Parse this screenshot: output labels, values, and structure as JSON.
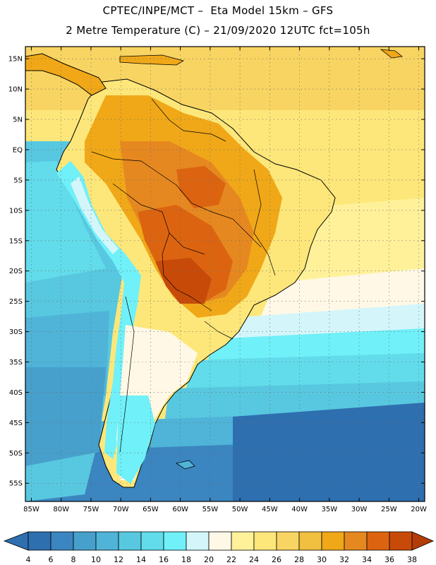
{
  "title": {
    "line1": "CPTEC/INPE/MCT –  Eta Model 15km – GFS",
    "line2": "2 Metre Temperature (C) – 21/09/2020 12UTC fct=105h"
  },
  "map": {
    "lon_range": [
      -86,
      -19
    ],
    "lat_range": [
      -58,
      17
    ],
    "lat_ticks": [
      {
        "value": 15,
        "label": "15N"
      },
      {
        "value": 10,
        "label": "10N"
      },
      {
        "value": 5,
        "label": "5N"
      },
      {
        "value": 0,
        "label": "EQ"
      },
      {
        "value": -5,
        "label": "5S"
      },
      {
        "value": -10,
        "label": "10S"
      },
      {
        "value": -15,
        "label": "15S"
      },
      {
        "value": -20,
        "label": "20S"
      },
      {
        "value": -25,
        "label": "25S"
      },
      {
        "value": -30,
        "label": "30S"
      },
      {
        "value": -35,
        "label": "35S"
      },
      {
        "value": -40,
        "label": "40S"
      },
      {
        "value": -45,
        "label": "45S"
      },
      {
        "value": -50,
        "label": "50S"
      },
      {
        "value": -55,
        "label": "55S"
      }
    ],
    "lon_ticks": [
      {
        "value": -85,
        "label": "85W"
      },
      {
        "value": -80,
        "label": "80W"
      },
      {
        "value": -75,
        "label": "75W"
      },
      {
        "value": -70,
        "label": "70W"
      },
      {
        "value": -65,
        "label": "65W"
      },
      {
        "value": -60,
        "label": "60W"
      },
      {
        "value": -55,
        "label": "55W"
      },
      {
        "value": -50,
        "label": "50W"
      },
      {
        "value": -45,
        "label": "45W"
      },
      {
        "value": -40,
        "label": "40W"
      },
      {
        "value": -35,
        "label": "35W"
      },
      {
        "value": -30,
        "label": "30W"
      },
      {
        "value": -25,
        "label": "25W"
      },
      {
        "value": -20,
        "label": "20W"
      }
    ]
  },
  "colorbar": {
    "labels": [
      "4",
      "6",
      "8",
      "10",
      "12",
      "14",
      "16",
      "18",
      "20",
      "22",
      "24",
      "26",
      "28",
      "30",
      "32",
      "34",
      "36",
      "38"
    ],
    "colors": [
      "#2e6fb0",
      "#3b85c0",
      "#47a0cc",
      "#4fb4d8",
      "#58c8e0",
      "#62dcea",
      "#70f0f8",
      "#d4f6fb",
      "#fff8e6",
      "#fff19a",
      "#fde77a",
      "#f8d462",
      "#f2c040",
      "#f0a818",
      "#e68820",
      "#dc6410",
      "#c84a08"
    ],
    "low_color": "#2e6fb0",
    "high_color": "#b43c06"
  }
}
